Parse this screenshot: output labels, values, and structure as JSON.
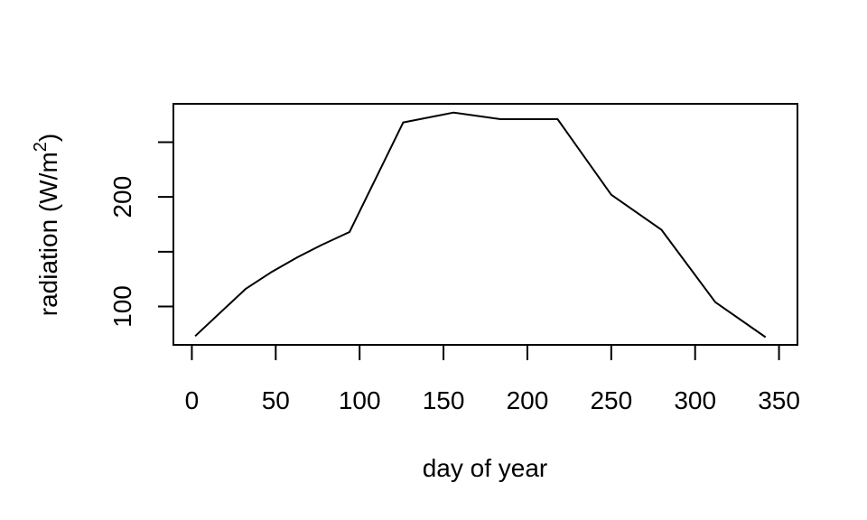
{
  "chart_data": {
    "type": "line",
    "title": "",
    "xlabel": "day of year",
    "ylabel": "radiation (W/m",
    "ylabel_superscript": "2",
    "ylabel_close": ")",
    "xlim": [
      -11,
      361
    ],
    "ylim": [
      65,
      285
    ],
    "xticks": [
      0,
      50,
      100,
      150,
      200,
      250,
      300,
      350
    ],
    "yticks": [
      100,
      150,
      200,
      250
    ],
    "ytick_labels": [
      "100",
      "",
      "200",
      ""
    ],
    "grid": false,
    "series": [
      {
        "x": [
          2,
          32,
          47,
          63,
          77,
          94,
          126,
          156,
          184,
          218,
          250,
          280,
          312,
          342
        ],
        "y": [
          73,
          116,
          131,
          145,
          156,
          168,
          268,
          277,
          271,
          271,
          202,
          170,
          104,
          72
        ]
      }
    ]
  }
}
